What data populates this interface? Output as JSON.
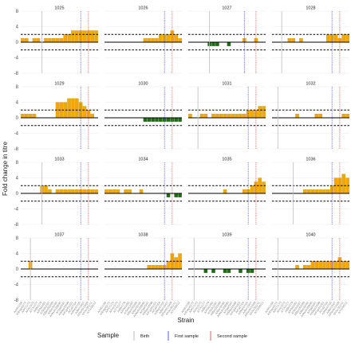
{
  "chart_data": {
    "type": "bar",
    "ylabel": "Fold change in titre",
    "xlabel": "Strain",
    "ylim": [
      -8,
      8
    ],
    "yticks": [
      -8,
      -4,
      0,
      4,
      8
    ],
    "thresholds": [
      2,
      -2
    ],
    "num_strains": 20,
    "strain_labels": [
      "A/HK/1/68",
      "A/Eng/42/72",
      "A/PC/1/73",
      "A/Vic/3/75",
      "A/TX/1/77",
      "A/Bk/1/79",
      "A/Phil/2/82",
      "A/Sich/2/87",
      "A/Bei/353/89",
      "A/Bei/32/92",
      "A/Wuh/359/95",
      "A/Syd/5/97",
      "A/Mos/10/99",
      "A/Fuj/411/02",
      "A/Cal/7/04",
      "A/Wis/67/05",
      "A/Bri/10/07",
      "A/Perth/16/09",
      "A/Vic/361/11",
      "A/TX/50/12"
    ],
    "pos_color": "#f2a800",
    "neg_color": "#1c6e12",
    "birth_color": "#bdbdbd",
    "first_color": "#5a5ae6",
    "second_color": "#e66060",
    "panels": [
      {
        "id": "1025",
        "birth": 5.5,
        "first": 15.5,
        "second": 17.5,
        "values": [
          1,
          1,
          0,
          1,
          1,
          0,
          1,
          1,
          1,
          1,
          1,
          2,
          2,
          3,
          3,
          3,
          3,
          3,
          3,
          3
        ]
      },
      {
        "id": "1026",
        "birth": null,
        "first": 15.5,
        "second": 17.5,
        "values": [
          0,
          0,
          0,
          0,
          0,
          0,
          0,
          0,
          0,
          0,
          1,
          1,
          1,
          1,
          2,
          2,
          2,
          3,
          2,
          1
        ]
      },
      {
        "id": "1027",
        "birth": 5.5,
        "first": 14.5,
        "second": 17.5,
        "values": [
          0,
          0,
          0,
          0,
          0,
          -1,
          -1,
          -1,
          0,
          0,
          -1,
          0,
          0,
          0,
          1,
          0,
          0,
          1,
          0,
          0
        ]
      },
      {
        "id": "1028",
        "birth": 2.5,
        "first": 15.5,
        "second": 17.5,
        "values": [
          0,
          0,
          0,
          0,
          1,
          1,
          0,
          1,
          0,
          0,
          0,
          0,
          0,
          0,
          2,
          2,
          2,
          1,
          2,
          2
        ]
      },
      {
        "id": "1029",
        "birth": null,
        "first": 15.5,
        "second": 17.5,
        "values": [
          1,
          1,
          1,
          1,
          0,
          0,
          0,
          0,
          0,
          4,
          4,
          4,
          5,
          5,
          5,
          4,
          3,
          2,
          1,
          0
        ]
      },
      {
        "id": "1030",
        "birth": null,
        "first": 15.5,
        "second": 17.5,
        "values": [
          0,
          0,
          0,
          0,
          0,
          0,
          0,
          0,
          0,
          0,
          -1,
          -1,
          -1,
          -1,
          -1,
          -1,
          -1,
          -1,
          -1,
          -1
        ]
      },
      {
        "id": "1031",
        "birth": 2.5,
        "first": 15.5,
        "second": 17.5,
        "values": [
          1,
          0,
          0,
          1,
          1,
          0,
          1,
          1,
          1,
          1,
          1,
          1,
          1,
          1,
          1,
          2,
          2,
          2,
          3,
          3
        ]
      },
      {
        "id": "1032",
        "birth": 1.5,
        "first": 15.5,
        "second": 17.5,
        "values": [
          0,
          0,
          0,
          0,
          0,
          0,
          1,
          0,
          0,
          0,
          0,
          1,
          1,
          0,
          0,
          0,
          0,
          0,
          1,
          1
        ]
      },
      {
        "id": "1033",
        "birth": 5.5,
        "first": 15.5,
        "second": 17.5,
        "values": [
          0,
          0,
          0,
          0,
          0,
          2,
          2,
          1,
          0,
          1,
          1,
          1,
          1,
          1,
          1,
          1,
          1,
          1,
          1,
          1
        ]
      },
      {
        "id": "1034",
        "birth": null,
        "first": 15.5,
        "second": 17.5,
        "values": [
          1,
          1,
          1,
          1,
          0,
          1,
          1,
          0,
          0,
          1,
          0,
          0,
          0,
          0,
          0,
          0,
          -1,
          0,
          -1,
          -1
        ]
      },
      {
        "id": "1035",
        "birth": null,
        "first": 15.5,
        "second": 17.5,
        "values": [
          0,
          0,
          0,
          0,
          0,
          0,
          0,
          0,
          0,
          1,
          0,
          0,
          0,
          0,
          1,
          1,
          2,
          3,
          4,
          3
        ]
      },
      {
        "id": "1036",
        "birth": 5.5,
        "first": 15.5,
        "second": 17.5,
        "values": [
          0,
          0,
          0,
          0,
          0,
          0,
          0,
          0,
          1,
          1,
          1,
          1,
          1,
          1,
          1,
          2,
          4,
          4,
          5,
          4
        ]
      },
      {
        "id": "1037",
        "birth": 2.5,
        "first": 15.5,
        "second": 17.5,
        "values": [
          0,
          0,
          2,
          0,
          0,
          0,
          0,
          0,
          0,
          0,
          0,
          0,
          0,
          0,
          0,
          0,
          0,
          0,
          0,
          0
        ]
      },
      {
        "id": "1038",
        "birth": null,
        "first": 15.5,
        "second": 17.5,
        "values": [
          0,
          0,
          0,
          0,
          0,
          0,
          0,
          0,
          0,
          0,
          0,
          1,
          1,
          1,
          1,
          1,
          2,
          4,
          3,
          4
        ]
      },
      {
        "id": "1039",
        "birth": 1.5,
        "first": 15.5,
        "second": 17.5,
        "values": [
          0,
          0,
          0,
          0,
          -1,
          0,
          -1,
          0,
          0,
          -1,
          -1,
          0,
          0,
          -1,
          0,
          -1,
          -1,
          0,
          0,
          0
        ]
      },
      {
        "id": "1040",
        "birth": 1.5,
        "first": 15.5,
        "second": 17.5,
        "values": [
          0,
          0,
          0,
          0,
          0,
          0,
          1,
          0,
          1,
          1,
          2,
          2,
          2,
          2,
          2,
          2,
          2,
          3,
          2,
          2
        ]
      }
    ],
    "legend": {
      "title": "Sample",
      "items": [
        {
          "label": "Birth",
          "color": "#bdbdbd"
        },
        {
          "label": "First sample",
          "color": "#5a5ae6"
        },
        {
          "label": "Second sample",
          "color": "#e66060"
        }
      ]
    }
  }
}
